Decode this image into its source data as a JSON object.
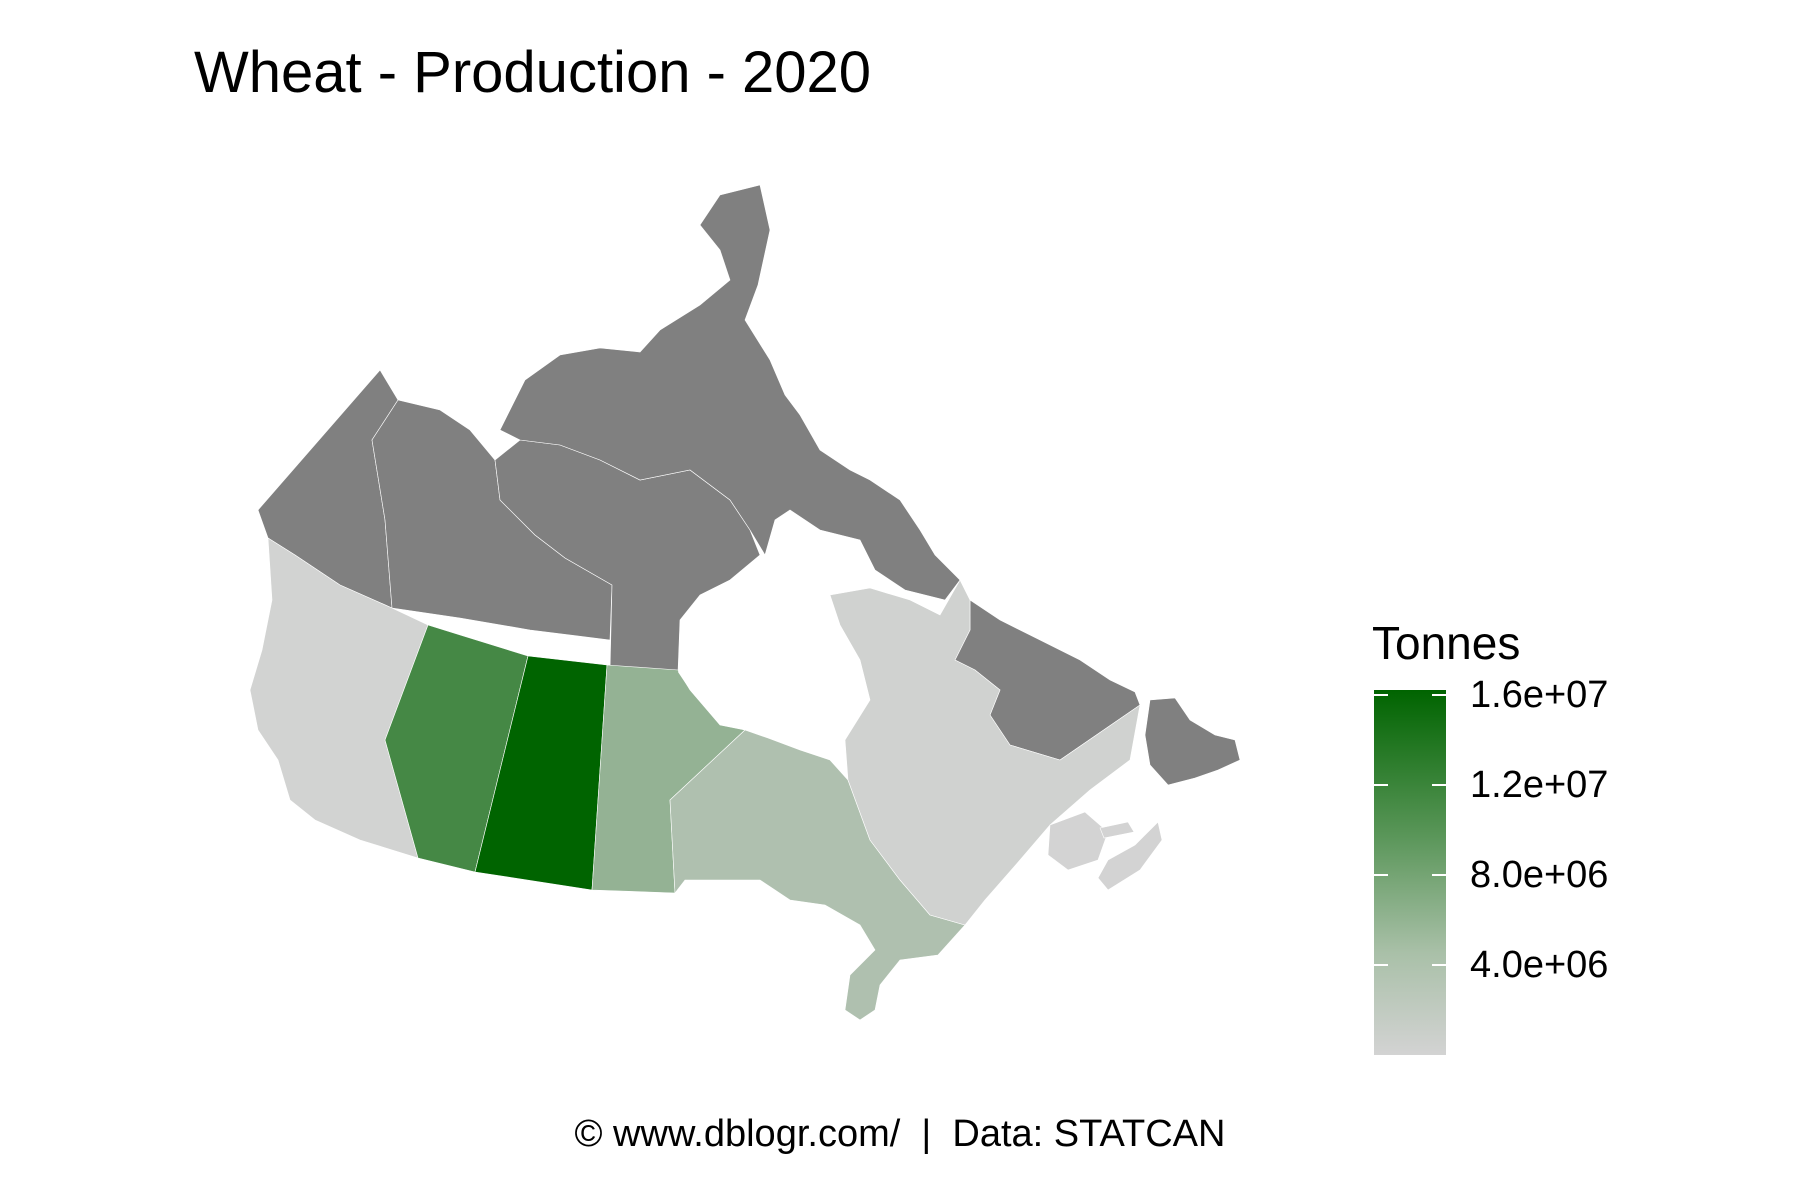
{
  "title": "Wheat - Production - 2020",
  "caption": "© www.dblogr.com/  |  Data: STATCAN",
  "legend": {
    "title": "Tonnes",
    "ticks": [
      {
        "label": "1.6e+07",
        "value": 16000000
      },
      {
        "label": "1.2e+07",
        "value": 12000000
      },
      {
        "label": "8.0e+06",
        "value": 8000000
      },
      {
        "label": "4.0e+06",
        "value": 4000000
      }
    ],
    "min": 0,
    "max": 16200000,
    "color_low": "#d3d3d3",
    "color_high": "#006400",
    "no_data_color": "#808080"
  },
  "chart_data": {
    "type": "choropleth",
    "title": "Wheat - Production - 2020",
    "value_label": "Tonnes",
    "regions": [
      {
        "name": "Saskatchewan",
        "value": 16200000
      },
      {
        "name": "Alberta",
        "value": 10900000
      },
      {
        "name": "Manitoba",
        "value": 4800000
      },
      {
        "name": "Ontario",
        "value": 2800000
      },
      {
        "name": "Quebec",
        "value": 200000
      },
      {
        "name": "British Columbia",
        "value": 60000
      },
      {
        "name": "New Brunswick",
        "value": 10000
      },
      {
        "name": "Nova Scotia",
        "value": 5000
      },
      {
        "name": "Prince Edward Island",
        "value": 30000
      },
      {
        "name": "Newfoundland and Labrador",
        "value": null
      },
      {
        "name": "Yukon",
        "value": null
      },
      {
        "name": "Northwest Territories",
        "value": null
      },
      {
        "name": "Nunavut",
        "value": null
      }
    ]
  }
}
